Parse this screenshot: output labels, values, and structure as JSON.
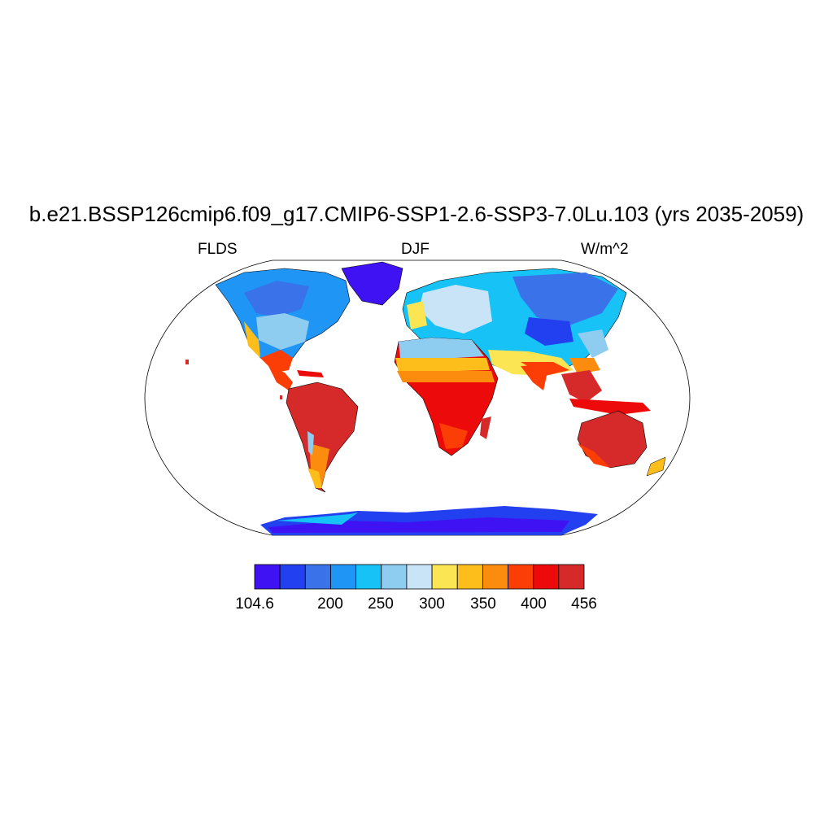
{
  "title": "b.e21.BSSP126cmip6.f09_g17.CMIP6-SSP1-2.6-SSP3-7.0Lu.103 (yrs 2035-2059)",
  "left_label": "FLDS",
  "center_label": "DJF",
  "right_label": "W/m^2",
  "colorbar": {
    "colors": [
      "#3f12f3",
      "#2340f0",
      "#3a72ea",
      "#1f96f6",
      "#17c2f7",
      "#8fcdf0",
      "#c8e4f6",
      "#fbe552",
      "#fdbd1b",
      "#fc8c0e",
      "#fb3d06",
      "#ec0a0a",
      "#d62a2a"
    ],
    "labels": [
      "104.6",
      "200",
      "250",
      "300",
      "350",
      "400",
      "456"
    ]
  }
}
